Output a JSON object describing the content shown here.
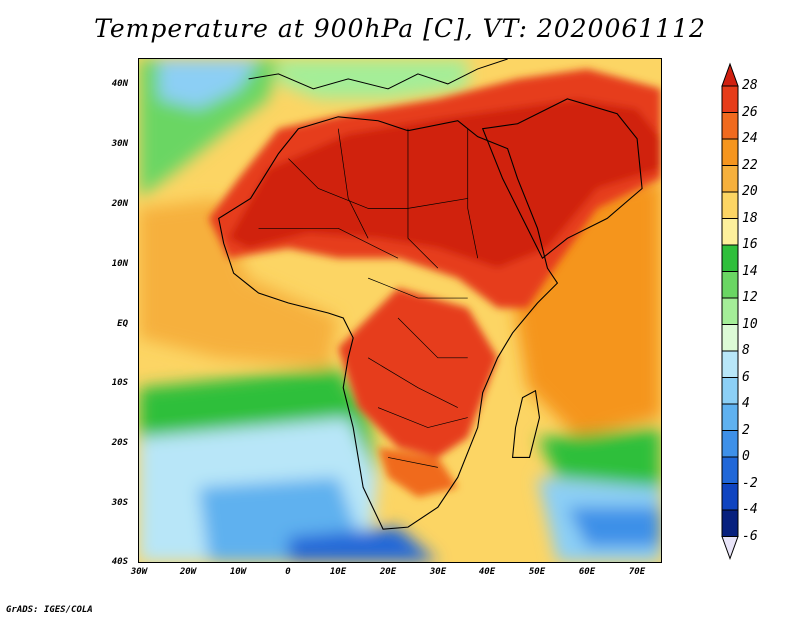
{
  "title": "Temperature at 900hPa [C], VT: 2020061112",
  "credit": "GrADS: IGES/COLA",
  "lat_labels": [
    "40N",
    "30N",
    "20N",
    "10N",
    "EQ",
    "10S",
    "20S",
    "30S",
    "40S"
  ],
  "lon_labels": [
    "30W",
    "20W",
    "10W",
    "0",
    "10E",
    "20E",
    "30E",
    "40E",
    "50E",
    "60E",
    "70E"
  ],
  "colorbar": {
    "levels": [
      "28",
      "26",
      "24",
      "22",
      "20",
      "18",
      "16",
      "14",
      "12",
      "10",
      "8",
      "6",
      "4",
      "2",
      "0",
      "-2",
      "-4",
      "-6"
    ],
    "colors": [
      "#d02010",
      "#e63c1a",
      "#f06a1e",
      "#f5951e",
      "#f6b03c",
      "#fcd564",
      "#fdf09c",
      "#2fbf3b",
      "#6ad663",
      "#a4ee98",
      "#dcfad6",
      "#b8e6f8",
      "#8ccff5",
      "#5fb1ef",
      "#3e90e8",
      "#2067d8",
      "#0f44c0",
      "#07207e"
    ]
  },
  "palette": {
    "ocean_cold": "#3e90e8",
    "ocean_cool": "#8ccff5",
    "green": "#6ad663",
    "yellow": "#fcd564",
    "orange": "#f5951e",
    "hot": "#e63c1a",
    "hottest": "#d02010"
  }
}
